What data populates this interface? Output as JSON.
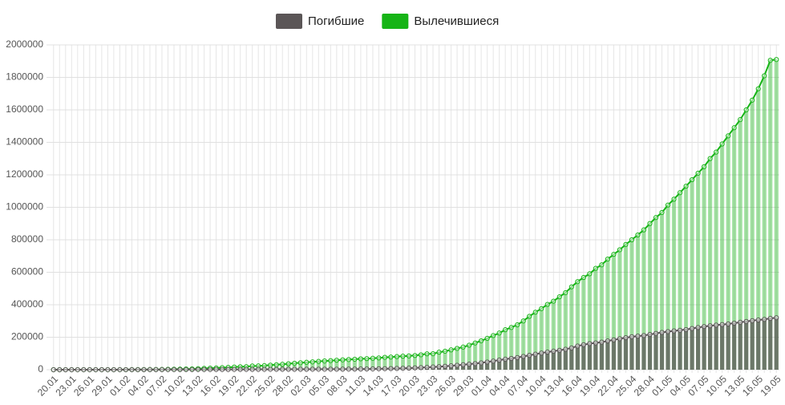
{
  "chart_data": {
    "type": "bar",
    "categories": [
      "20.01",
      null,
      null,
      "23.01",
      null,
      null,
      "26.01",
      null,
      null,
      "29.01",
      null,
      null,
      "01.02",
      null,
      null,
      "04.02",
      null,
      null,
      "07.02",
      null,
      null,
      "10.02",
      null,
      null,
      "13.02",
      null,
      null,
      "16.02",
      null,
      null,
      "19.02",
      null,
      null,
      "22.02",
      null,
      null,
      "25.02",
      null,
      null,
      "28.02",
      null,
      null,
      "02.03",
      null,
      null,
      "05.03",
      null,
      null,
      "08.03",
      null,
      null,
      "11.03",
      null,
      null,
      "14.03",
      null,
      null,
      "17.03",
      null,
      null,
      "20.03",
      null,
      null,
      "23.03",
      null,
      null,
      "26.03",
      null,
      null,
      "29.03",
      null,
      null,
      "01.04",
      null,
      null,
      "04.04",
      null,
      null,
      "07.04",
      null,
      null,
      "10.04",
      null,
      null,
      "13.04",
      null,
      null,
      "16.04",
      null,
      null,
      "19.04",
      null,
      null,
      "22.04",
      null,
      null,
      "25.04",
      null,
      null,
      "28.04",
      null,
      null,
      "01.05",
      null,
      null,
      "04.05",
      null,
      null,
      "07.05",
      null,
      null,
      "10.05",
      null,
      null,
      "13.05",
      null,
      null,
      "16.05",
      null,
      null,
      "19.05"
    ],
    "series": [
      {
        "name": "Погибшие",
        "color": "#5b5657",
        "values": [
          0,
          0,
          17,
          18,
          26,
          42,
          56,
          82,
          106,
          132,
          170,
          213,
          259,
          304,
          362,
          426,
          492,
          565,
          638,
          724,
          813,
          910,
          1018,
          1115,
          1261,
          1383,
          1526,
          1669,
          1775,
          1873,
          2009,
          2126,
          2247,
          2360,
          2460,
          2618,
          2699,
          2763,
          2800,
          2858,
          2923,
          2977,
          3050,
          3117,
          3202,
          3285,
          3385,
          3494,
          3598,
          3800,
          4000,
          4300,
          4600,
          5100,
          5800,
          6500,
          7100,
          7900,
          8700,
          9800,
          11200,
          12900,
          14600,
          16500,
          18600,
          21200,
          24000,
          27300,
          30800,
          34000,
          37800,
          42100,
          47200,
          53200,
          59100,
          64700,
          69500,
          74700,
          81900,
          88300,
          95600,
          102700,
          108500,
          114100,
          119500,
          125900,
          134100,
          145500,
          154000,
          160700,
          165000,
          169900,
          177400,
          183700,
          190700,
          197200,
          203200,
          206900,
          210700,
          217000,
          223600,
          229500,
          234700,
          239100,
          242800,
          247300,
          253800,
          259800,
          265800,
          270700,
          274700,
          278200,
          281700,
          286700,
          292000,
          297000,
          302000,
          306000,
          310000,
          316000,
          320000
        ]
      },
      {
        "name": "Вылечившиеся",
        "color": "#16b416",
        "values": [
          0,
          0,
          28,
          30,
          36,
          39,
          52,
          61,
          107,
          126,
          143,
          222,
          284,
          472,
          623,
          852,
          1124,
          1487,
          1764,
          2616,
          3244,
          3946,
          4683,
          5150,
          6295,
          8058,
          9395,
          10865,
          12583,
          14352,
          16121,
          18177,
          18890,
          22886,
          23394,
          25227,
          27905,
          30384,
          33277,
          36711,
          39782,
          42716,
          45602,
          48228,
          51170,
          53796,
          55865,
          58358,
          60694,
          62494,
          64404,
          67003,
          68324,
          70251,
          72624,
          76034,
          78088,
          80840,
          83312,
          84975,
          87420,
          91692,
          97899,
          98351,
          107890,
          113787,
          122150,
          130915,
          139415,
          151014,
          164566,
          178034,
          193177,
          210263,
          225796,
          246152,
          260012,
          276515,
          300054,
          328661,
          353975,
          376096,
          402110,
          421722,
          449159,
          474261,
          510159,
          542107,
          567858,
          590582,
          623903,
          645738,
          681060,
          710263,
          738486,
          771329,
          800000,
          830000,
          861000,
          900000,
          937000,
          968000,
          1014000,
          1050000,
          1090000,
          1130000,
          1170000,
          1210000,
          1250000,
          1300000,
          1340000,
          1390000,
          1440000,
          1490000,
          1540000,
          1600000,
          1660000,
          1730000,
          1810000,
          1905000,
          1910000
        ]
      }
    ],
    "ylim": [
      0,
      2000000
    ],
    "yticks": [
      0,
      200000,
      400000,
      600000,
      800000,
      1000000,
      1200000,
      1400000,
      1600000,
      1800000,
      2000000
    ],
    "grid": true
  }
}
